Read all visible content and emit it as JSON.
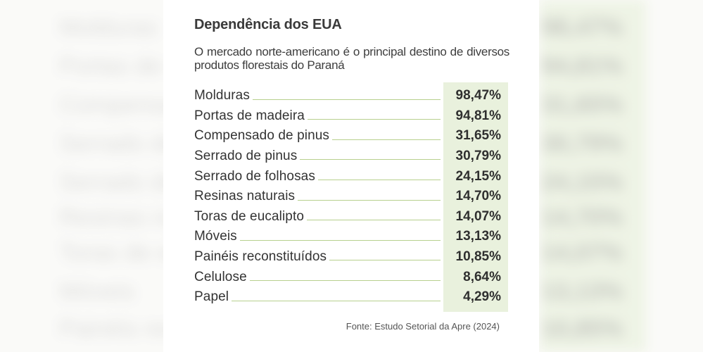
{
  "title": "Dependência dos EUA",
  "subtitle": "O mercado norte-americano é o principal destino de diversos produtos florestais do Paraná",
  "source": "Fonte: Estudo Setorial da Apre (2024)",
  "colors": {
    "accent_green": "#b7d08e",
    "value_column_bg": "#e9f1dd",
    "text": "#333333"
  },
  "rows": [
    {
      "name": "Molduras",
      "value": "98,47%"
    },
    {
      "name": "Portas de madeira",
      "value": "94,81%"
    },
    {
      "name": "Compensado de pinus",
      "value": "31,65%"
    },
    {
      "name": "Serrado de pinus",
      "value": "30,79%"
    },
    {
      "name": "Serrado de folhosas",
      "value": "24,15%"
    },
    {
      "name": "Resinas naturais",
      "value": "14,70%"
    },
    {
      "name": "Toras de eucalipto",
      "value": "14,07%"
    },
    {
      "name": "Móveis",
      "value": "13,13%"
    },
    {
      "name": "Painéis reconstituídos",
      "value": "10,85%"
    },
    {
      "name": "Celulose",
      "value": "8,64%"
    },
    {
      "name": "Papel",
      "value": "4,29%"
    }
  ]
}
